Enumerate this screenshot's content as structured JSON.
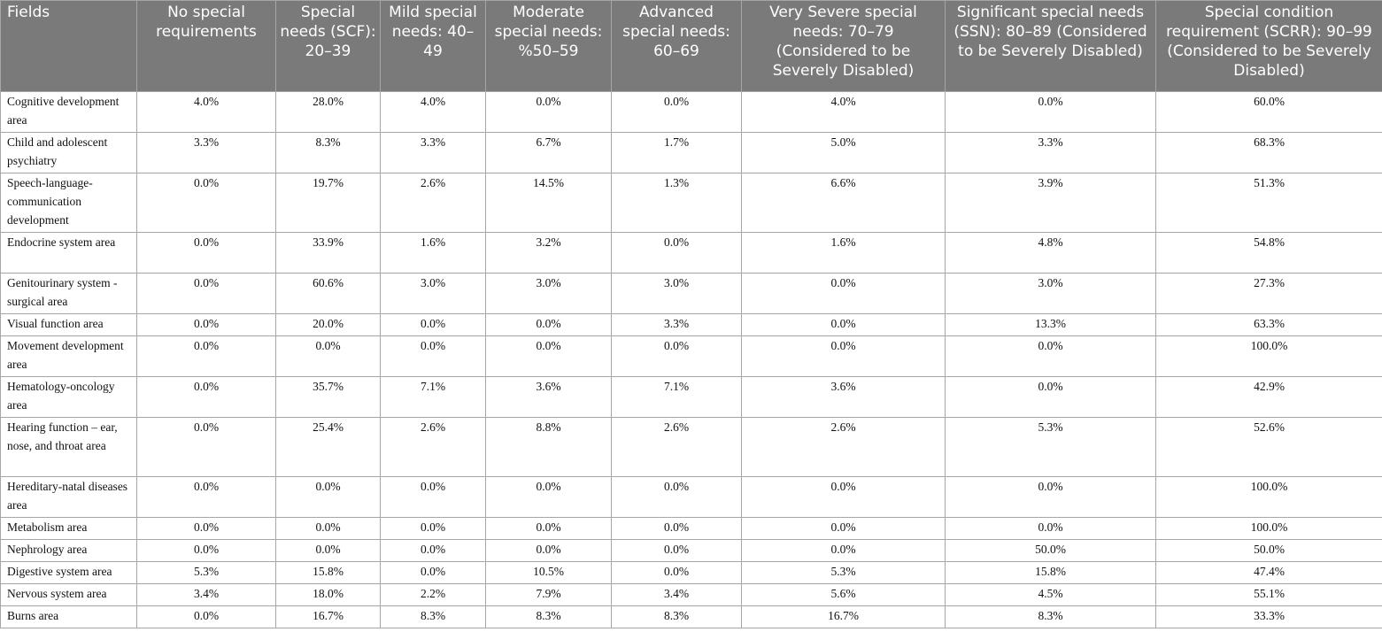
{
  "table": {
    "headers": [
      "Fields",
      "No special requirements",
      "Special needs (SCF): 20–39",
      "Mild special needs: 40–49",
      "Moderate special needs: %50–59",
      "Advanced special needs: 60–69",
      "Very Severe special needs: 70–79 (Considered to be Severely Disabled)",
      "Significant special needs (SSN): 80–89 (Considered to be Severely Disabled)",
      "Special condition requirement (SCRR): 90–99 (Considered to be Severely Disabled)"
    ],
    "rows": [
      [
        "Cognitive development area",
        "4.0%",
        "28.0%",
        "4.0%",
        "0.0%",
        "0.0%",
        "4.0%",
        "0.0%",
        "60.0%"
      ],
      [
        "Child and adolescent psychiatry",
        "3.3%",
        "8.3%",
        "3.3%",
        "6.7%",
        "1.7%",
        "5.0%",
        "3.3%",
        "68.3%"
      ],
      [
        "Speech-language-communication development",
        "0.0%",
        "19.7%",
        "2.6%",
        "14.5%",
        "1.3%",
        "6.6%",
        "3.9%",
        "51.3%"
      ],
      [
        "Endocrine system area",
        "0.0%",
        "33.9%",
        "1.6%",
        "3.2%",
        "0.0%",
        "1.6%",
        "4.8%",
        "54.8%"
      ],
      [
        "Genitourinary system - surgical area",
        "0.0%",
        "60.6%",
        "3.0%",
        "3.0%",
        "3.0%",
        "0.0%",
        "3.0%",
        "27.3%"
      ],
      [
        "Visual function area",
        "0.0%",
        "20.0%",
        "0.0%",
        "0.0%",
        "3.3%",
        "0.0%",
        "13.3%",
        "63.3%"
      ],
      [
        "Movement development area",
        "0.0%",
        "0.0%",
        "0.0%",
        "0.0%",
        "0.0%",
        "0.0%",
        "0.0%",
        "100.0%"
      ],
      [
        "Hematology-oncology area",
        "0.0%",
        "35.7%",
        "7.1%",
        "3.6%",
        "7.1%",
        "3.6%",
        "0.0%",
        "42.9%"
      ],
      [
        "Hearing function – ear, nose, and throat area",
        "0.0%",
        "25.4%",
        "2.6%",
        "8.8%",
        "2.6%",
        "2.6%",
        "5.3%",
        "52.6%"
      ],
      [
        "Hereditary-natal diseases area",
        "0.0%",
        "0.0%",
        "0.0%",
        "0.0%",
        "0.0%",
        "0.0%",
        "0.0%",
        "100.0%"
      ],
      [
        "Metabolism area",
        "0.0%",
        "0.0%",
        "0.0%",
        "0.0%",
        "0.0%",
        "0.0%",
        "0.0%",
        "100.0%"
      ],
      [
        "Nephrology area",
        "0.0%",
        "0.0%",
        "0.0%",
        "0.0%",
        "0.0%",
        "0.0%",
        "50.0%",
        "50.0%"
      ],
      [
        "Digestive system area",
        "5.3%",
        "15.8%",
        "0.0%",
        "10.5%",
        "0.0%",
        "5.3%",
        "15.8%",
        "47.4%"
      ],
      [
        "Nervous system area",
        "3.4%",
        "18.0%",
        "2.2%",
        "7.9%",
        "3.4%",
        "5.6%",
        "4.5%",
        "55.1%"
      ],
      [
        "Burns area",
        "0.0%",
        "16.7%",
        "8.3%",
        "8.3%",
        "8.3%",
        "16.7%",
        "8.3%",
        "33.3%"
      ]
    ]
  }
}
